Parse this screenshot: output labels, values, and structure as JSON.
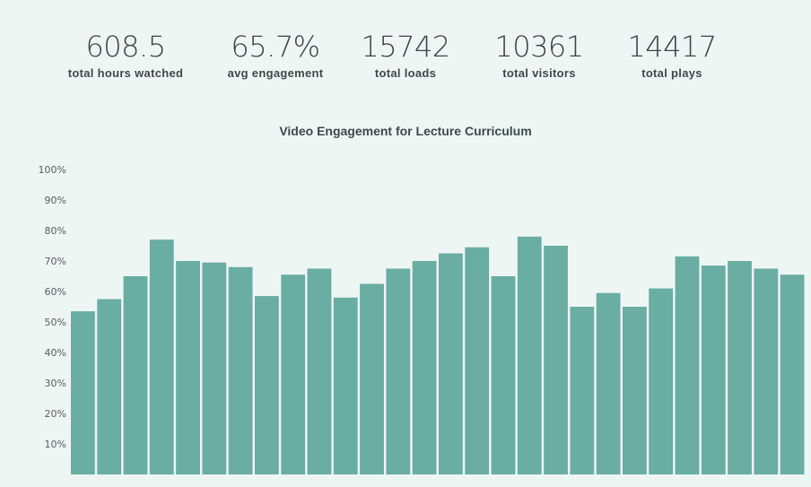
{
  "stats": [
    {
      "value": "608.5",
      "label": "total hours watched"
    },
    {
      "value": "65.7%",
      "label": "avg engagement"
    },
    {
      "value": "15742",
      "label": "total loads"
    },
    {
      "value": "10361",
      "label": "total visitors"
    },
    {
      "value": "14417",
      "label": "total plays"
    }
  ],
  "colors": {
    "background": "#eef6f3",
    "bar": "#69ada3",
    "text": "#3d4a4a"
  },
  "chart_data": {
    "type": "bar",
    "title": "Video Engagement for Lecture Curriculum",
    "xlabel": "",
    "ylabel": "",
    "ylim": [
      0,
      100
    ],
    "yticks": [
      "10%",
      "20%",
      "30%",
      "40%",
      "50%",
      "60%",
      "70%",
      "80%",
      "90%",
      "100%"
    ],
    "grid": false,
    "values": [
      53.5,
      57.5,
      65,
      77,
      70,
      69.5,
      68,
      58.5,
      65.5,
      67.5,
      58,
      62.5,
      67.5,
      70,
      72.5,
      74.5,
      65,
      78,
      75,
      55,
      59.5,
      55,
      61,
      71.5,
      68.5,
      70,
      67.5,
      65.5
    ]
  }
}
